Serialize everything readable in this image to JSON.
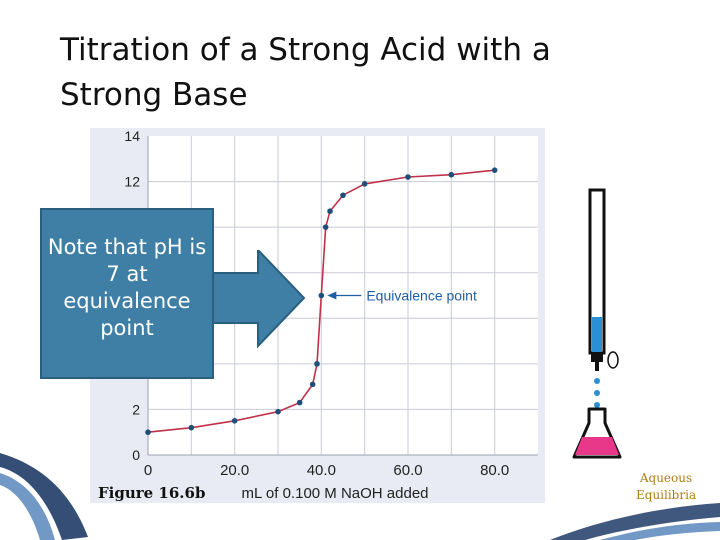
{
  "slide": {
    "title_line1": "Titration of a Strong Acid with a",
    "title_line2": "Strong Base",
    "callout_text": "Note that pH is 7 at equivalence point",
    "figure_label": "Figure 16.6b",
    "corner_text_line1": "Aqueous",
    "corner_text_line2": "Equilibria"
  },
  "chart_data": {
    "type": "line",
    "title": "",
    "xlabel": "mL of 0.100 M NaOH added",
    "ylabel": "",
    "xlim": [
      0,
      90
    ],
    "ylim": [
      0,
      14
    ],
    "x_ticks": [
      "0",
      "20.0",
      "40.0",
      "60.0",
      "80.0"
    ],
    "x_tick_values": [
      0,
      20,
      40,
      60,
      80
    ],
    "y_ticks": [
      "0",
      "2",
      "12",
      "14"
    ],
    "y_tick_values": [
      0,
      2,
      12,
      14
    ],
    "grid": true,
    "points": [
      {
        "x": 0,
        "y": 1.0
      },
      {
        "x": 10,
        "y": 1.2
      },
      {
        "x": 20,
        "y": 1.5
      },
      {
        "x": 30,
        "y": 1.9
      },
      {
        "x": 35,
        "y": 2.3
      },
      {
        "x": 38,
        "y": 3.1
      },
      {
        "x": 39,
        "y": 4.0
      },
      {
        "x": 40,
        "y": 7.0
      },
      {
        "x": 41,
        "y": 10.0
      },
      {
        "x": 42,
        "y": 10.7
      },
      {
        "x": 45,
        "y": 11.4
      },
      {
        "x": 50,
        "y": 11.9
      },
      {
        "x": 60,
        "y": 12.2
      },
      {
        "x": 70,
        "y": 12.3
      },
      {
        "x": 80,
        "y": 12.5
      }
    ],
    "annotation": {
      "text": "Equivalence point",
      "x": 40,
      "y": 7.0
    },
    "colors": {
      "curve": "#c0314a",
      "point": "#1f4e79",
      "plot_bg": "#ffffff",
      "frame_bg": "#e8ebf3",
      "grid": "#c9cbd6",
      "annotation": "#1f5fa8"
    }
  },
  "colors": {
    "callout_bg": "#3f7fa6",
    "arrow": "#3f7fa6",
    "titrant": "#2b8fd6",
    "flask_liquid": "#e8388a",
    "corner_text": "#b07d10"
  }
}
